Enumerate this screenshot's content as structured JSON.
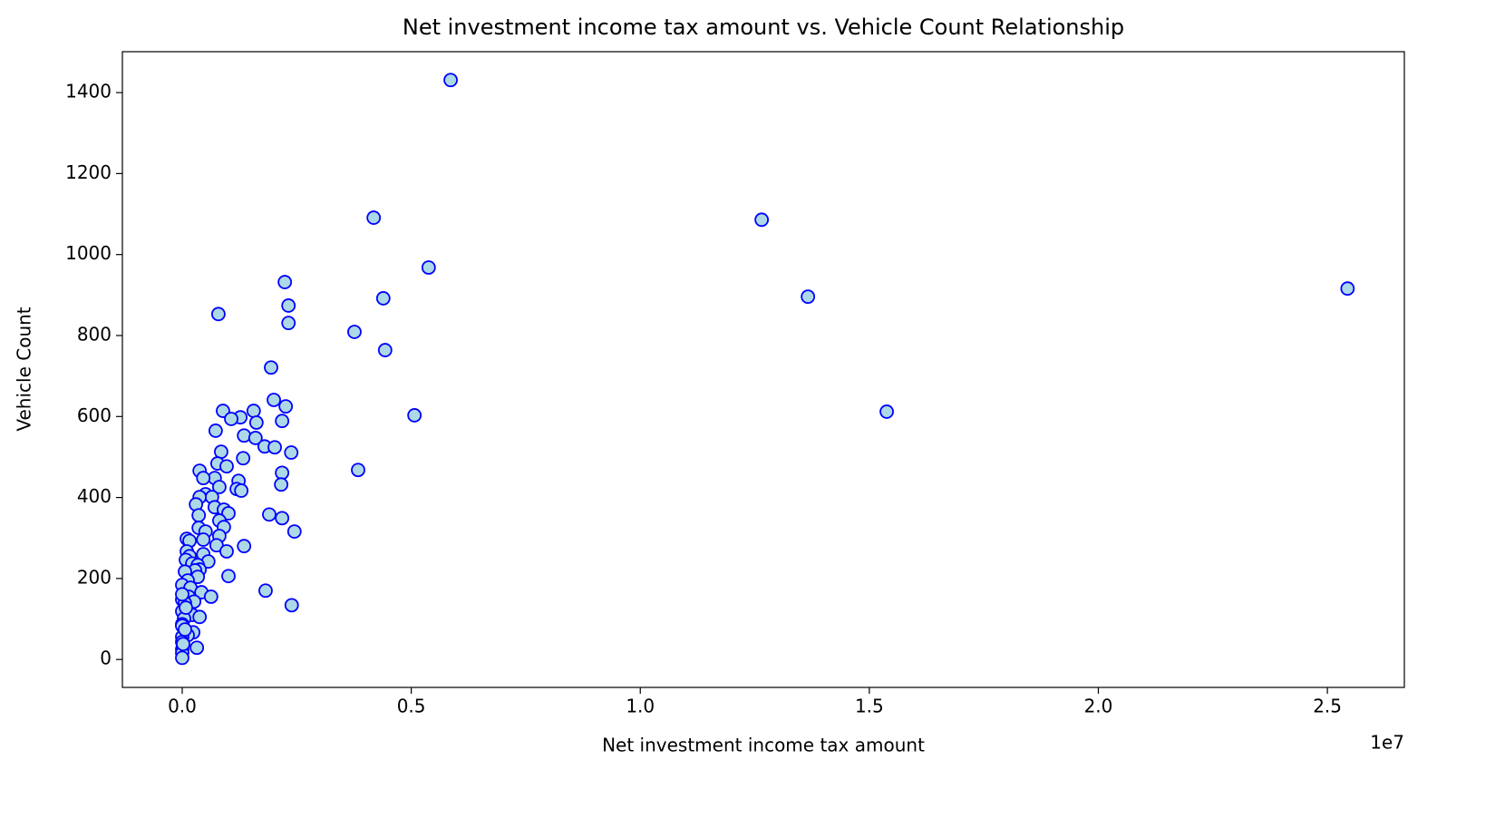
{
  "chart_data": {
    "type": "scatter",
    "title": "Net investment income tax amount vs. Vehicle Count Relationship",
    "x_label": "Net investment income tax amount",
    "y_label": "Vehicle Count",
    "x_offset_label": "1e7",
    "xlim": [
      -1306000,
      26680000
    ],
    "ylim": [
      -69,
      1501
    ],
    "xticks": [
      {
        "value": 0,
        "label": "0.0"
      },
      {
        "value": 5000000,
        "label": "0.5"
      },
      {
        "value": 10000000,
        "label": "1.0"
      },
      {
        "value": 15000000,
        "label": "1.5"
      },
      {
        "value": 20000000,
        "label": "2.0"
      },
      {
        "value": 25000000,
        "label": "2.5"
      }
    ],
    "yticks": [
      0,
      200,
      400,
      600,
      800,
      1000,
      1200,
      1400
    ],
    "series": [
      {
        "fill": "#add8e6",
        "color": "#0000ff",
        "x": [
          5860000,
          4180000,
          12650000,
          5380000,
          13660000,
          25440000,
          4390000,
          2240000,
          2320000,
          2320000,
          790000,
          3760000,
          4430000,
          1940000,
          15380000,
          5070000,
          2000000,
          2260000,
          890000,
          1560000,
          1270000,
          1070000,
          2180000,
          1620000,
          730000,
          1350000,
          1600000,
          1800000,
          2020000,
          2380000,
          850000,
          1330000,
          770000,
          970000,
          3840000,
          380000,
          2180000,
          710000,
          460000,
          1230000,
          2160000,
          810000,
          1190000,
          1290000,
          510000,
          650000,
          380000,
          300000,
          710000,
          910000,
          360000,
          1010000,
          1900000,
          2180000,
          810000,
          2450000,
          360000,
          910000,
          510000,
          810000,
          460000,
          100000,
          160000,
          750000,
          1350000,
          970000,
          100000,
          460000,
          160000,
          80000,
          220000,
          570000,
          340000,
          380000,
          280000,
          1010000,
          340000,
          60000,
          120000,
          0,
          180000,
          1820000,
          420000,
          630000,
          140000,
          0,
          260000,
          60000,
          2390000,
          0,
          220000,
          380000,
          40000,
          0,
          240000,
          120000,
          0,
          0,
          320000,
          0,
          0,
          0,
          20000,
          0,
          60000,
          0,
          80000
        ],
        "values": [
          1431,
          1091,
          1086,
          968,
          896,
          916,
          892,
          932,
          874,
          831,
          853,
          809,
          764,
          721,
          612,
          603,
          641,
          625,
          614,
          614,
          598,
          594,
          589,
          585,
          565,
          553,
          547,
          526,
          524,
          511,
          513,
          497,
          484,
          477,
          468,
          466,
          461,
          448,
          448,
          441,
          432,
          426,
          421,
          417,
          408,
          401,
          401,
          383,
          376,
          370,
          356,
          361,
          358,
          349,
          343,
          316,
          325,
          327,
          316,
          305,
          296,
          298,
          293,
          282,
          280,
          267,
          267,
          260,
          255,
          246,
          237,
          242,
          233,
          222,
          220,
          206,
          204,
          217,
          195,
          184,
          177,
          170,
          166,
          155,
          155,
          148,
          143,
          139,
          134,
          119,
          110,
          105,
          101,
          87,
          67,
          60,
          56,
          43,
          29,
          25,
          16,
          4,
          38,
          83,
          74,
          161,
          128
        ]
      }
    ]
  }
}
